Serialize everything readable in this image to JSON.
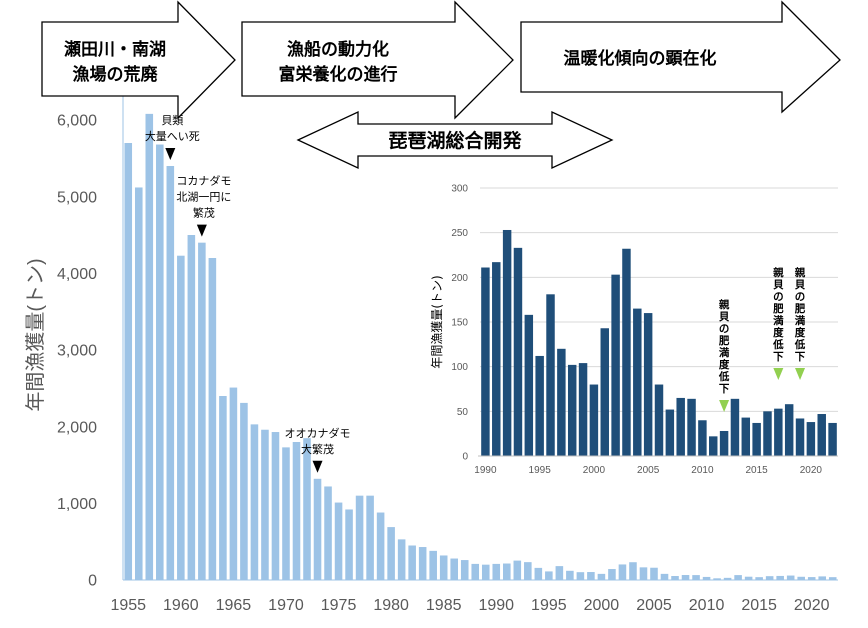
{
  "banners": {
    "arrow1": [
      "瀬田川・南湖",
      "漁場の荒廃"
    ],
    "arrow2": [
      "漁船の動力化",
      "富栄養化の進行"
    ],
    "arrow3": [
      "温暖化傾向の顕在化"
    ],
    "arrow4": [
      "琵琶湖総合開発"
    ]
  },
  "chart_data": [
    {
      "type": "bar",
      "ylabel": "年間漁獲量(トン)",
      "ylim": [
        0,
        6000
      ],
      "yticks": [
        "0",
        "1,000",
        "2,000",
        "3,000",
        "4,000",
        "5,000",
        "6,000"
      ],
      "ytick_values": [
        0,
        1000,
        2000,
        3000,
        4000,
        5000,
        6000
      ],
      "xticks": [
        "1955",
        "1960",
        "1965",
        "1970",
        "1975",
        "1980",
        "1985",
        "1990",
        "1995",
        "2000",
        "2005",
        "2010",
        "2015",
        "2020"
      ],
      "color": "#9dc3e6",
      "categories": [
        1955,
        1956,
        1957,
        1958,
        1959,
        1960,
        1961,
        1962,
        1963,
        1964,
        1965,
        1966,
        1967,
        1968,
        1969,
        1970,
        1971,
        1972,
        1973,
        1974,
        1975,
        1976,
        1977,
        1978,
        1979,
        1980,
        1981,
        1982,
        1983,
        1984,
        1985,
        1986,
        1987,
        1988,
        1989,
        1990,
        1991,
        1992,
        1993,
        1994,
        1995,
        1996,
        1997,
        1998,
        1999,
        2000,
        2001,
        2002,
        2003,
        2004,
        2005,
        2006,
        2007,
        2008,
        2009,
        2010,
        2011,
        2012,
        2013,
        2014,
        2015,
        2016,
        2017,
        2018,
        2019,
        2020,
        2021,
        2022
      ],
      "values": [
        5700,
        5120,
        6080,
        5680,
        5400,
        4230,
        4500,
        4400,
        4200,
        2400,
        2510,
        2310,
        2030,
        1960,
        1930,
        1730,
        1800,
        1850,
        1320,
        1220,
        1010,
        920,
        1100,
        1100,
        880,
        690,
        530,
        450,
        430,
        380,
        320,
        280,
        260,
        210,
        200,
        210,
        215,
        253,
        233,
        158,
        112,
        181,
        120,
        102,
        104,
        80,
        143,
        203,
        232,
        165,
        160,
        80,
        52,
        65,
        64,
        40,
        22,
        28,
        64,
        43,
        37,
        50,
        53,
        58,
        42,
        38,
        47,
        37
      ],
      "annotations": [
        {
          "lines": [
            "貝類",
            "大量へい死"
          ],
          "year": 1959
        },
        {
          "lines": [
            "コカナダモ",
            "北湖一円に",
            "繁茂"
          ],
          "year": 1962
        },
        {
          "lines": [
            "オオカナダモ",
            "大繁茂"
          ],
          "year": 1973
        }
      ]
    },
    {
      "type": "bar",
      "ylabel": "年間漁獲量(トン)",
      "ylim": [
        0,
        300
      ],
      "yticks": [
        "0",
        "50",
        "100",
        "150",
        "200",
        "250",
        "300"
      ],
      "ytick_values": [
        0,
        50,
        100,
        150,
        200,
        250,
        300
      ],
      "xticks": [
        "1990",
        "1995",
        "2000",
        "2005",
        "2010",
        "2015",
        "2020"
      ],
      "color": "#1f4e79",
      "categories": [
        1990,
        1991,
        1992,
        1993,
        1994,
        1995,
        1996,
        1997,
        1998,
        1999,
        2000,
        2001,
        2002,
        2003,
        2004,
        2005,
        2006,
        2007,
        2008,
        2009,
        2010,
        2011,
        2012,
        2013,
        2014,
        2015,
        2016,
        2017,
        2018,
        2019,
        2020,
        2021,
        2022
      ],
      "values": [
        211,
        217,
        253,
        233,
        158,
        112,
        181,
        120,
        102,
        104,
        80,
        143,
        203,
        232,
        165,
        160,
        80,
        52,
        65,
        64,
        40,
        22,
        28,
        64,
        43,
        37,
        50,
        53,
        58,
        42,
        38,
        47,
        37
      ],
      "annotations": [
        {
          "text": "親貝の肥満度低下",
          "year": 2012
        },
        {
          "text": "親貝の肥満度低下",
          "year": 2017
        },
        {
          "text": "親貝の肥満度低下",
          "year": 2019
        }
      ]
    }
  ]
}
